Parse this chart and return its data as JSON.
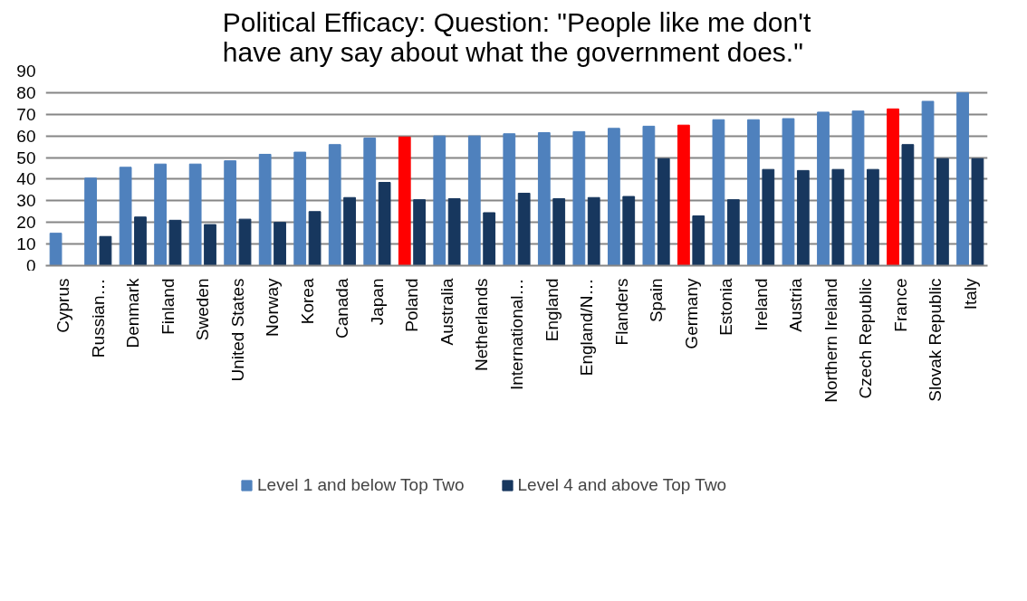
{
  "chart_data": {
    "type": "bar",
    "title": "Political Efficacy: Question: \"People like me don't have any say about what the government does.\"",
    "categories": [
      "Cyprus",
      "Russian…",
      "Denmark",
      "Finland",
      "Sweden",
      "United States",
      "Norway",
      "Korea",
      "Canada",
      "Japan",
      "Poland",
      "Australia",
      "Netherlands",
      "International…",
      "England",
      "England/N…",
      "Flanders",
      "Spain",
      "Germany",
      "Estonia",
      "Ireland",
      "Austria",
      "Northern Ireland",
      "Czech Republic",
      "France",
      "Slovak Republic",
      "Italy"
    ],
    "series": [
      {
        "name": "Level 1 and below Top Two",
        "color": "#4f81bd",
        "colors": [
          "#4f81bd",
          "#4f81bd",
          "#4f81bd",
          "#4f81bd",
          "#4f81bd",
          "#4f81bd",
          "#4f81bd",
          "#4f81bd",
          "#4f81bd",
          "#4f81bd",
          "#ff0000",
          "#4f81bd",
          "#4f81bd",
          "#4f81bd",
          "#4f81bd",
          "#4f81bd",
          "#4f81bd",
          "#4f81bd",
          "#ff0000",
          "#4f81bd",
          "#4f81bd",
          "#4f81bd",
          "#4f81bd",
          "#4f81bd",
          "#ff0000",
          "#4f81bd",
          "#4f81bd"
        ],
        "values": [
          15,
          40.5,
          45.5,
          47,
          47,
          48.5,
          51.5,
          52.5,
          56,
          59,
          59.5,
          60,
          60,
          61,
          61.5,
          62,
          63.5,
          64.5,
          65,
          67.5,
          67.5,
          68,
          71,
          71.5,
          72.5,
          76,
          80
        ]
      },
      {
        "name": "Level 4 and above Top Two",
        "color": "#17375e",
        "values": [
          null,
          13.5,
          22.5,
          21,
          19,
          21.5,
          20,
          25,
          31.5,
          38.5,
          30.5,
          31,
          24.5,
          33.5,
          31,
          31.5,
          32,
          49.5,
          23,
          30.5,
          44.5,
          44,
          44.5,
          44.5,
          56,
          49.5,
          49.5
        ]
      }
    ],
    "ylim": [
      0,
      90
    ],
    "yticks": [
      0,
      10,
      20,
      30,
      40,
      50,
      60,
      70,
      80,
      90
    ],
    "grid": "y",
    "legend": "bottom"
  }
}
